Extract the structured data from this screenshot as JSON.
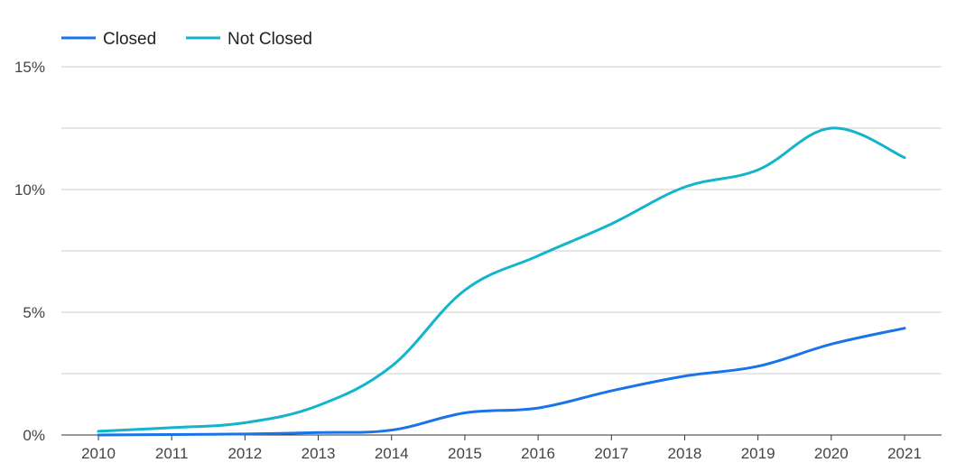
{
  "chart_data": {
    "type": "line",
    "title": "",
    "xlabel": "",
    "ylabel": "",
    "categories": [
      "2010",
      "2011",
      "2012",
      "2013",
      "2014",
      "2015",
      "2016",
      "2017",
      "2018",
      "2019",
      "2020",
      "2021"
    ],
    "ylim": [
      0,
      15
    ],
    "yticks": [
      0,
      5,
      10,
      15
    ],
    "ytick_labels": [
      "0%",
      "5%",
      "10%",
      "15%"
    ],
    "minor_gridlines": [
      2.5,
      7.5,
      12.5
    ],
    "grid": true,
    "legend_position": "top-left",
    "series": [
      {
        "name": "Closed",
        "color": "#1a73e8",
        "values": [
          0.0,
          0.02,
          0.04,
          0.1,
          0.2,
          0.9,
          1.1,
          1.8,
          2.4,
          2.8,
          3.7,
          4.35
        ]
      },
      {
        "name": "Not Closed",
        "color": "#12b5cb",
        "values": [
          0.15,
          0.3,
          0.5,
          1.2,
          2.8,
          5.9,
          7.3,
          8.6,
          10.1,
          10.8,
          12.5,
          11.3
        ]
      }
    ]
  }
}
